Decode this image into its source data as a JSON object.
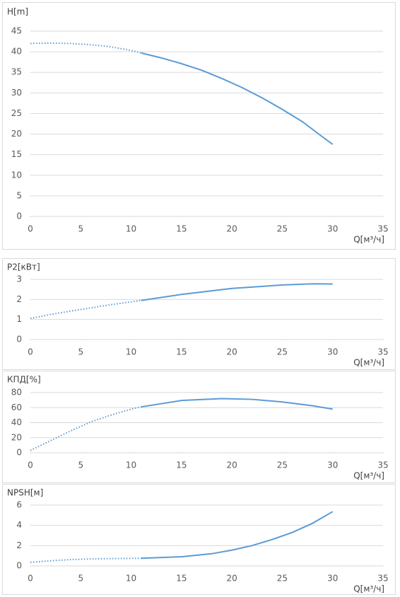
{
  "chart_data": [
    {
      "type": "line",
      "title": "H[m]",
      "xlabel": "Q[м³/ч]",
      "xlim": [
        0,
        35
      ],
      "xticks": [
        0,
        5,
        10,
        15,
        20,
        25,
        30,
        35
      ],
      "ylim": [
        0,
        45
      ],
      "yticks": [
        0,
        5,
        10,
        15,
        20,
        25,
        30,
        35,
        40,
        45
      ],
      "grid": true,
      "series": [
        {
          "color": "#5b9bd5",
          "style": "dotted",
          "x": [
            0,
            2,
            4,
            6,
            8,
            10,
            11
          ],
          "values": [
            42,
            42.1,
            42,
            41.7,
            41.2,
            40.3,
            39.7
          ]
        },
        {
          "color": "#5b9bd5",
          "style": "solid",
          "x": [
            11,
            13,
            15,
            17,
            19,
            21,
            23,
            25,
            27,
            29,
            30
          ],
          "values": [
            39.7,
            38.5,
            37.1,
            35.5,
            33.5,
            31.3,
            28.8,
            26,
            23,
            19.3,
            17.5
          ]
        }
      ]
    },
    {
      "type": "line",
      "title": "P2[кВт]",
      "xlabel": "Q[м³/ч]",
      "xlim": [
        0,
        35
      ],
      "xticks": [
        0,
        5,
        10,
        15,
        20,
        25,
        30,
        35
      ],
      "ylim": [
        0,
        3
      ],
      "yticks": [
        0,
        1,
        2,
        3
      ],
      "grid": true,
      "series": [
        {
          "color": "#5b9bd5",
          "style": "dotted",
          "x": [
            0,
            2,
            4,
            6,
            8,
            10,
            11
          ],
          "values": [
            1.05,
            1.25,
            1.42,
            1.58,
            1.74,
            1.88,
            1.95
          ]
        },
        {
          "color": "#5b9bd5",
          "style": "solid",
          "x": [
            11,
            15,
            20,
            25,
            28,
            30
          ],
          "values": [
            1.95,
            2.25,
            2.55,
            2.72,
            2.78,
            2.77
          ]
        }
      ]
    },
    {
      "type": "line",
      "title": "КПД[%]",
      "xlabel": "Q[м³/ч]",
      "xlim": [
        0,
        35
      ],
      "xticks": [
        0,
        5,
        10,
        15,
        20,
        25,
        30,
        35
      ],
      "ylim": [
        0,
        80
      ],
      "yticks": [
        0,
        20,
        40,
        60,
        80
      ],
      "grid": true,
      "series": [
        {
          "color": "#5b9bd5",
          "style": "dotted",
          "x": [
            0,
            2,
            4,
            6,
            8,
            10,
            11
          ],
          "values": [
            3,
            16,
            29,
            41,
            50,
            58,
            61
          ]
        },
        {
          "color": "#5b9bd5",
          "style": "solid",
          "x": [
            11,
            15,
            19,
            22,
            25,
            28,
            30
          ],
          "values": [
            61,
            69.5,
            72,
            71,
            67.5,
            62.5,
            58
          ]
        }
      ]
    },
    {
      "type": "line",
      "title": "NPSH[м]",
      "xlabel": "Q[м³/ч]",
      "xlim": [
        0,
        35
      ],
      "xticks": [
        0,
        5,
        10,
        15,
        20,
        25,
        30,
        35
      ],
      "ylim": [
        0,
        6
      ],
      "yticks": [
        0,
        2,
        4,
        6
      ],
      "grid": true,
      "series": [
        {
          "color": "#5b9bd5",
          "style": "dotted",
          "x": [
            0,
            2,
            4,
            6,
            8,
            11
          ],
          "values": [
            0.35,
            0.5,
            0.62,
            0.68,
            0.72,
            0.75
          ]
        },
        {
          "color": "#5b9bd5",
          "style": "solid",
          "x": [
            11,
            15,
            18,
            20,
            22,
            24,
            26,
            28,
            30
          ],
          "values": [
            0.75,
            0.9,
            1.2,
            1.55,
            2,
            2.6,
            3.3,
            4.2,
            5.35
          ]
        }
      ]
    }
  ]
}
